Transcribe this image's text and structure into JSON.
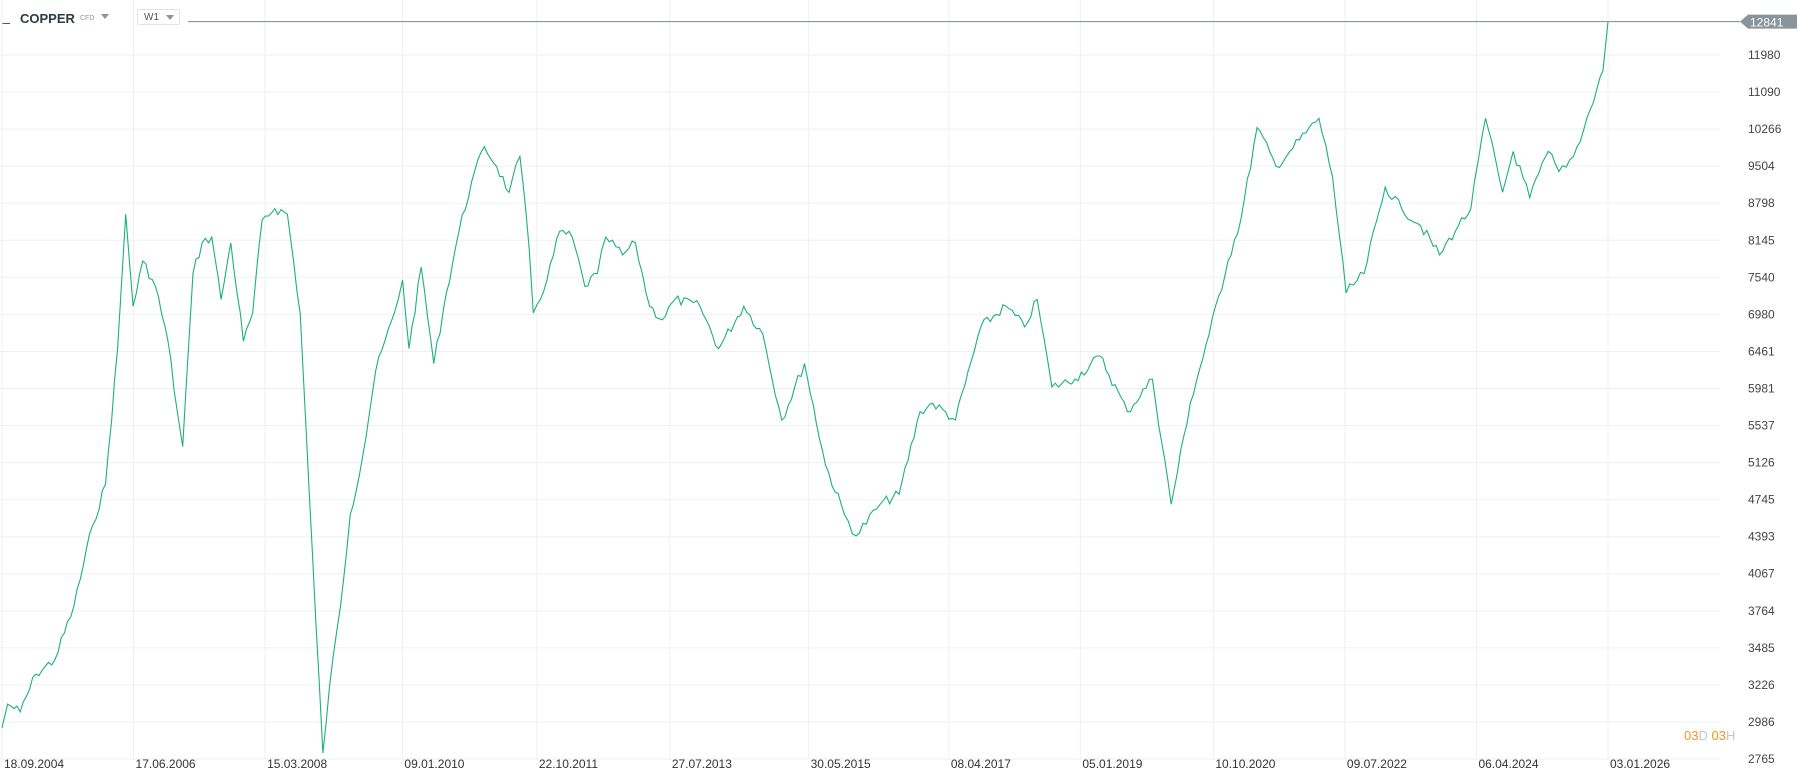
{
  "header": {
    "symbol": "COPPER",
    "type": "CFD",
    "timeframe": "W1"
  },
  "countdown": {
    "d_value": "03",
    "d_unit": "D",
    "h_value": "03",
    "h_unit": "H"
  },
  "colors": {
    "line": "#1db176",
    "grid": "#eef0f2",
    "price_tag": "#8a949b"
  },
  "chart_data": {
    "type": "line",
    "y_scale": "log",
    "ylim": [
      2765,
      12841
    ],
    "grid": true,
    "current_price": "12841",
    "y_ticks": [
      "11980",
      "11090",
      "10266",
      "9504",
      "8798",
      "8145",
      "7540",
      "6980",
      "6461",
      "5981",
      "5537",
      "5126",
      "4745",
      "4393",
      "4067",
      "3764",
      "3485",
      "3226",
      "2986",
      "2765"
    ],
    "x_ticks": [
      "18.09.2004",
      "17.06.2006",
      "15.03.2008",
      "09.01.2010",
      "22.10.2011",
      "27.07.2013",
      "30.05.2015",
      "08.04.2017",
      "05.01.2019",
      "10.10.2020",
      "09.07.2022",
      "06.04.2024",
      "03.01.2026"
    ],
    "series": [
      {
        "points": [
          [
            "2004-09-18",
            2950
          ],
          [
            "2004-10-15",
            3100
          ],
          [
            "2004-12-15",
            3050
          ],
          [
            "2005-03-01",
            3300
          ],
          [
            "2005-06-01",
            3400
          ],
          [
            "2005-09-01",
            3800
          ],
          [
            "2005-12-01",
            4500
          ],
          [
            "2006-02-01",
            4900
          ],
          [
            "2006-04-01",
            6500
          ],
          [
            "2006-05-10",
            8600
          ],
          [
            "2006-06-15",
            7100
          ],
          [
            "2006-08-01",
            7800
          ],
          [
            "2006-10-01",
            7400
          ],
          [
            "2006-12-01",
            6600
          ],
          [
            "2007-01-15",
            5700
          ],
          [
            "2007-02-10",
            5300
          ],
          [
            "2007-04-01",
            7600
          ],
          [
            "2007-05-15",
            8100
          ],
          [
            "2007-07-01",
            8200
          ],
          [
            "2007-08-15",
            7200
          ],
          [
            "2007-10-01",
            8100
          ],
          [
            "2007-12-01",
            6600
          ],
          [
            "2008-01-15",
            7000
          ],
          [
            "2008-03-01",
            8500
          ],
          [
            "2008-05-01",
            8700
          ],
          [
            "2008-07-01",
            8600
          ],
          [
            "2008-09-01",
            7000
          ],
          [
            "2008-10-15",
            4800
          ],
          [
            "2008-11-15",
            3700
          ],
          [
            "2008-12-20",
            2800
          ],
          [
            "2009-01-20",
            3200
          ],
          [
            "2009-03-15",
            3800
          ],
          [
            "2009-05-01",
            4600
          ],
          [
            "2009-07-01",
            5200
          ],
          [
            "2009-09-01",
            6200
          ],
          [
            "2009-12-01",
            7000
          ],
          [
            "2010-01-10",
            7500
          ],
          [
            "2010-02-10",
            6500
          ],
          [
            "2010-04-10",
            7700
          ],
          [
            "2010-06-10",
            6300
          ],
          [
            "2010-08-10",
            7300
          ],
          [
            "2010-10-10",
            8300
          ],
          [
            "2010-12-10",
            9200
          ],
          [
            "2011-02-10",
            9900
          ],
          [
            "2011-04-10",
            9500
          ],
          [
            "2011-06-10",
            9000
          ],
          [
            "2011-08-01",
            9700
          ],
          [
            "2011-09-15",
            8000
          ],
          [
            "2011-10-05",
            7000
          ],
          [
            "2011-12-10",
            7500
          ],
          [
            "2012-02-10",
            8300
          ],
          [
            "2012-04-10",
            8200
          ],
          [
            "2012-06-10",
            7400
          ],
          [
            "2012-08-10",
            7600
          ],
          [
            "2012-09-20",
            8200
          ],
          [
            "2012-12-10",
            7900
          ],
          [
            "2013-02-10",
            8100
          ],
          [
            "2013-04-20",
            7100
          ],
          [
            "2013-06-20",
            6900
          ],
          [
            "2013-08-20",
            7200
          ],
          [
            "2013-12-20",
            7100
          ],
          [
            "2014-03-20",
            6500
          ],
          [
            "2014-07-20",
            7100
          ],
          [
            "2014-10-20",
            6700
          ],
          [
            "2015-01-20",
            5600
          ],
          [
            "2015-05-10",
            6300
          ],
          [
            "2015-08-20",
            5100
          ],
          [
            "2015-11-20",
            4600
          ],
          [
            "2016-01-15",
            4400
          ],
          [
            "2016-05-10",
            4700
          ],
          [
            "2016-08-10",
            4800
          ],
          [
            "2016-11-20",
            5700
          ],
          [
            "2017-01-20",
            5800
          ],
          [
            "2017-05-10",
            5600
          ],
          [
            "2017-09-10",
            6800
          ],
          [
            "2018-01-10",
            7100
          ],
          [
            "2018-04-10",
            6800
          ],
          [
            "2018-06-10",
            7200
          ],
          [
            "2018-08-20",
            6000
          ],
          [
            "2018-12-10",
            6100
          ],
          [
            "2019-04-10",
            6400
          ],
          [
            "2019-08-20",
            5700
          ],
          [
            "2019-12-20",
            6100
          ],
          [
            "2020-03-20",
            4700
          ],
          [
            "2020-06-20",
            5800
          ],
          [
            "2020-09-20",
            6700
          ],
          [
            "2020-12-20",
            7800
          ],
          [
            "2021-02-20",
            8500
          ],
          [
            "2021-05-10",
            10300
          ],
          [
            "2021-08-10",
            9500
          ],
          [
            "2021-10-15",
            9800
          ],
          [
            "2022-03-05",
            10500
          ],
          [
            "2022-05-10",
            9300
          ],
          [
            "2022-07-15",
            7300
          ],
          [
            "2022-10-10",
            7600
          ],
          [
            "2023-01-20",
            9100
          ],
          [
            "2023-04-10",
            8700
          ],
          [
            "2023-07-10",
            8400
          ],
          [
            "2023-10-10",
            7900
          ],
          [
            "2024-01-10",
            8400
          ],
          [
            "2024-03-10",
            8700
          ],
          [
            "2024-05-20",
            10500
          ],
          [
            "2024-08-10",
            9000
          ],
          [
            "2024-10-01",
            9800
          ],
          [
            "2024-12-20",
            8900
          ],
          [
            "2025-03-20",
            9800
          ],
          [
            "2025-05-10",
            9400
          ],
          [
            "2025-07-20",
            9700
          ],
          [
            "2025-10-10",
            10700
          ],
          [
            "2025-12-10",
            11600
          ],
          [
            "2026-01-03",
            12841
          ]
        ]
      }
    ]
  }
}
